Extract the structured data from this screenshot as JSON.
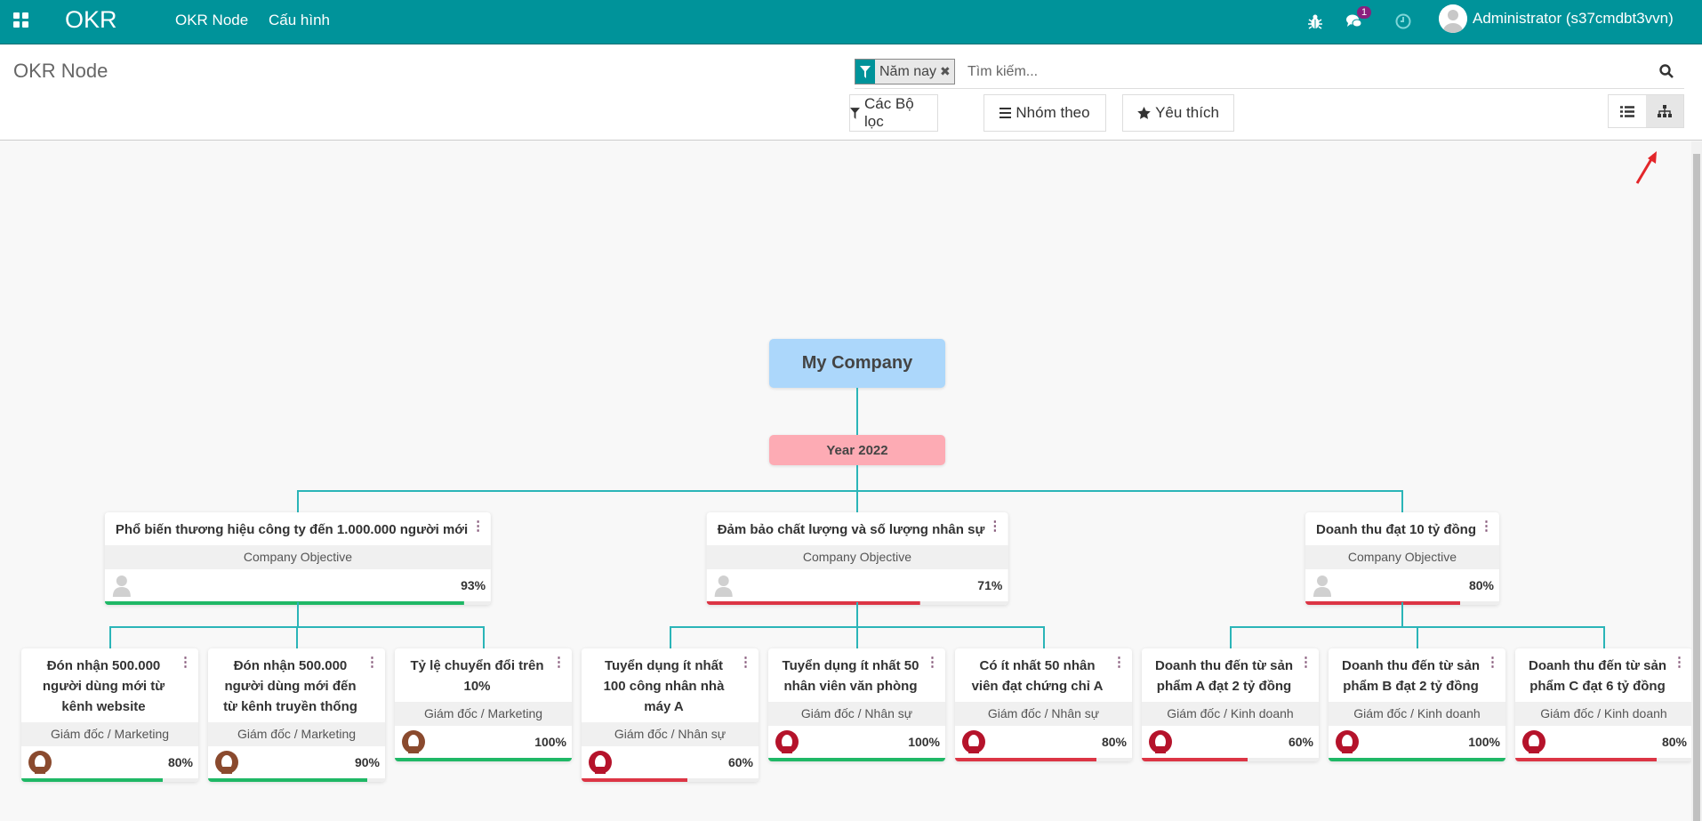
{
  "navbar": {
    "app_name": "OKR",
    "menu": [
      "OKR Node",
      "Cấu hình"
    ],
    "chat_badge": "1",
    "user": "Administrator (s37cmdbt3vvn)",
    "icons": [
      "apps-grid-icon",
      "bug-icon",
      "chat-icon",
      "clock-icon",
      "user-avatar"
    ]
  },
  "control_panel": {
    "title": "OKR Node",
    "facet": "Năm nay",
    "search_placeholder": "Tìm kiếm...",
    "filters_label": "Các Bộ lọc",
    "group_by_label": "Nhóm theo",
    "favorites_label": "Yêu thích",
    "views": [
      {
        "name": "list",
        "active": false
      },
      {
        "name": "hierarchy",
        "active": true
      }
    ]
  },
  "colors": {
    "brand": "#00939a",
    "line": "#2bb5b8",
    "good": "#1fb866",
    "bad": "#dc3545",
    "company": "#acd7fb",
    "year": "#fdabb4"
  },
  "tree": {
    "root": "My Company",
    "year": "Year 2022",
    "objectives": [
      {
        "title": "Phổ biến thương hiệu công ty đến 1.000.000 người mới",
        "subtitle": "Company Objective",
        "percent": "93%",
        "progress": 93,
        "status": "good",
        "children": [
          {
            "title": "Đón nhận 500.000 người dùng mới từ kênh website",
            "subtitle": "Giám đốc / Marketing",
            "percent": "80%",
            "progress": 80,
            "status": "good",
            "avatar_color": "#8a4a2e"
          },
          {
            "title": "Đón nhận 500.000 người dùng mới đến từ kênh truyền thống",
            "subtitle": "Giám đốc / Marketing",
            "percent": "90%",
            "progress": 90,
            "status": "good",
            "avatar_color": "#8a4a2e"
          },
          {
            "title": "Tỷ lệ chuyển đổi trên 10%",
            "subtitle": "Giám đốc / Marketing",
            "percent": "100%",
            "progress": 100,
            "status": "good",
            "avatar_color": "#8a4a2e"
          }
        ]
      },
      {
        "title": "Đảm bảo chất lượng và số lượng nhân sự",
        "subtitle": "Company Objective",
        "percent": "71%",
        "progress": 71,
        "status": "bad",
        "children": [
          {
            "title": "Tuyển dụng ít nhất 100 công nhân nhà máy A",
            "subtitle": "Giám đốc / Nhân sự",
            "percent": "60%",
            "progress": 60,
            "status": "bad",
            "avatar_color": "#b5132b"
          },
          {
            "title": "Tuyển dụng ít nhất 50 nhân viên văn phòng",
            "subtitle": "Giám đốc / Nhân sự",
            "percent": "100%",
            "progress": 100,
            "status": "good",
            "avatar_color": "#b5132b"
          },
          {
            "title": "Có ít nhất 50 nhân viên đạt chứng chỉ A",
            "subtitle": "Giám đốc / Nhân sự",
            "percent": "80%",
            "progress": 80,
            "status": "bad",
            "avatar_color": "#b5132b"
          }
        ]
      },
      {
        "title": "Doanh thu đạt 10 tỷ đồng",
        "subtitle": "Company Objective",
        "percent": "80%",
        "progress": 80,
        "status": "bad",
        "children": [
          {
            "title": "Doanh thu đến từ sản phẩm A đạt 2 tỷ đồng",
            "subtitle": "Giám đốc / Kinh doanh",
            "percent": "60%",
            "progress": 60,
            "status": "bad",
            "avatar_color": "#b5132b"
          },
          {
            "title": "Doanh thu đến từ sản phẩm B đạt 2 tỷ đồng",
            "subtitle": "Giám đốc / Kinh doanh",
            "percent": "100%",
            "progress": 100,
            "status": "good",
            "avatar_color": "#b5132b"
          },
          {
            "title": "Doanh thu đến từ sản phẩm C đạt 6 tỷ đồng",
            "subtitle": "Giám đốc / Kinh doanh",
            "percent": "80%",
            "progress": 80,
            "status": "bad",
            "avatar_color": "#b5132b"
          }
        ]
      }
    ]
  }
}
